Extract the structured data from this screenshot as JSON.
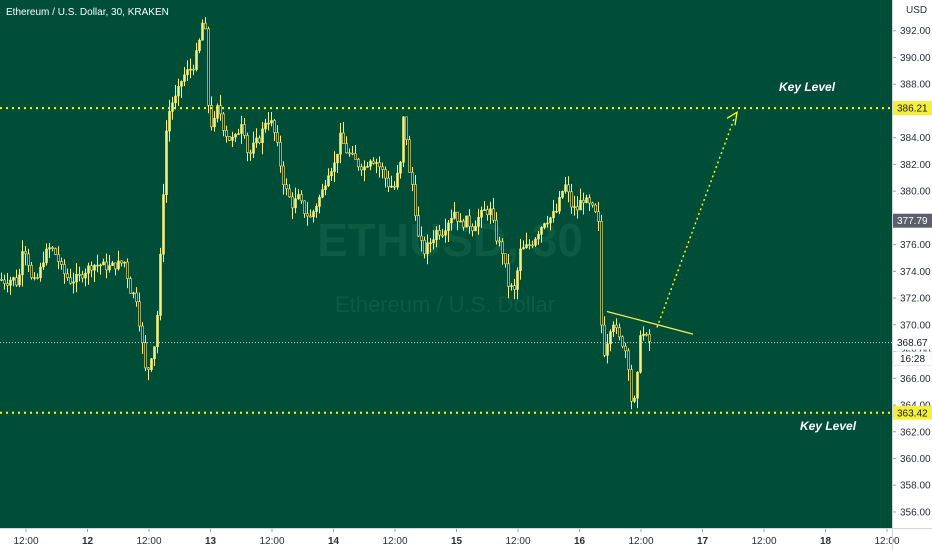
{
  "header": {
    "title": "Ethereum / U.S. Dollar, 30, KRAKEN",
    "currency": "USD"
  },
  "watermark": {
    "symbol": "ETHUSD, 30",
    "name": "Ethereum / U.S. Dollar"
  },
  "annotations": {
    "upper_label": "Key Level",
    "lower_label": "Key Level"
  },
  "colors": {
    "background": "#004d38",
    "candle": "#f5f07a",
    "line": "#f3ee5a",
    "dotted": "#ffff00",
    "axis_bg": "#ffffff"
  },
  "chart_data": {
    "type": "candlestick",
    "title": "Ethereum / U.S. Dollar, 30, KRAKEN",
    "ylabel": "USD",
    "ylim": [
      354.8,
      394.3
    ],
    "y_ticks": [
      "356.00",
      "358.00",
      "360.00",
      "362.00",
      "364.00",
      "366.00",
      "368.00",
      "370.00",
      "372.00",
      "374.00",
      "376.00",
      "378.00",
      "380.00",
      "382.00",
      "384.00",
      "386.00",
      "388.00",
      "390.00",
      "392.00"
    ],
    "x_ticks": [
      "12:00",
      "12",
      "12:00",
      "13",
      "12:00",
      "14",
      "12:00",
      "15",
      "12:00",
      "16",
      "12:00",
      "17",
      "12:00",
      "18",
      "12:00"
    ],
    "levels": {
      "upper_key_level": 386.21,
      "lower_key_level": 363.42,
      "last_price": 368.67,
      "price_tag": 377.79
    },
    "countdown": "16:28",
    "close_path": [
      [
        0,
        373.4
      ],
      [
        6,
        373.2
      ],
      [
        12,
        373.5
      ],
      [
        18,
        373.0
      ],
      [
        22,
        375.8
      ],
      [
        26,
        375.5
      ],
      [
        32,
        373.0
      ],
      [
        38,
        373.6
      ],
      [
        44,
        375.2
      ],
      [
        50,
        375.8
      ],
      [
        56,
        375.2
      ],
      [
        62,
        374.0
      ],
      [
        70,
        373.3
      ],
      [
        78,
        373.5
      ],
      [
        84,
        374.0
      ],
      [
        92,
        374.5
      ],
      [
        100,
        374.5
      ],
      [
        108,
        374.3
      ],
      [
        116,
        374.5
      ],
      [
        124,
        374.7
      ],
      [
        130,
        372.6
      ],
      [
        136,
        372.0
      ],
      [
        142,
        368.5
      ],
      [
        146,
        366.0
      ],
      [
        150,
        367.5
      ],
      [
        154,
        368.5
      ],
      [
        158,
        371.5
      ],
      [
        162,
        378.5
      ],
      [
        166,
        384.5
      ],
      [
        170,
        386.5
      ],
      [
        176,
        387.0
      ],
      [
        182,
        388.5
      ],
      [
        188,
        389.0
      ],
      [
        194,
        389.5
      ],
      [
        200,
        391.5
      ],
      [
        204,
        393.6
      ],
      [
        208,
        386.5
      ],
      [
        212,
        384.5
      ],
      [
        218,
        386.5
      ],
      [
        224,
        384.5
      ],
      [
        230,
        383.8
      ],
      [
        236,
        384.0
      ],
      [
        242,
        385.5
      ],
      [
        248,
        382.5
      ],
      [
        254,
        383.5
      ],
      [
        260,
        384.0
      ],
      [
        266,
        385.5
      ],
      [
        272,
        385.0
      ],
      [
        278,
        383.0
      ],
      [
        282,
        381.0
      ],
      [
        286,
        380.0
      ],
      [
        292,
        379.0
      ],
      [
        298,
        379.5
      ],
      [
        304,
        378.5
      ],
      [
        310,
        378.0
      ],
      [
        316,
        379.0
      ],
      [
        322,
        380.0
      ],
      [
        328,
        381.5
      ],
      [
        334,
        382.0
      ],
      [
        340,
        384.0
      ],
      [
        346,
        383.0
      ],
      [
        352,
        382.5
      ],
      [
        358,
        382.0
      ],
      [
        364,
        381.8
      ],
      [
        370,
        382.5
      ],
      [
        376,
        382.2
      ],
      [
        382,
        381.5
      ],
      [
        388,
        380.5
      ],
      [
        394,
        380.3
      ],
      [
        400,
        382.0
      ],
      [
        404,
        386.5
      ],
      [
        408,
        381.5
      ],
      [
        412,
        380.5
      ],
      [
        418,
        376.5
      ],
      [
        424,
        375.5
      ],
      [
        430,
        376.2
      ],
      [
        436,
        377.0
      ],
      [
        442,
        377.0
      ],
      [
        448,
        377.8
      ],
      [
        454,
        378.5
      ],
      [
        460,
        377.5
      ],
      [
        466,
        377.8
      ],
      [
        472,
        377.3
      ],
      [
        478,
        378.0
      ],
      [
        484,
        378.5
      ],
      [
        490,
        378.5
      ],
      [
        496,
        376.5
      ],
      [
        502,
        375.5
      ],
      [
        508,
        373.0
      ],
      [
        514,
        372.5
      ],
      [
        520,
        375.5
      ],
      [
        526,
        375.8
      ],
      [
        532,
        376.2
      ],
      [
        538,
        377.0
      ],
      [
        544,
        377.8
      ],
      [
        550,
        378.0
      ],
      [
        556,
        378.5
      ],
      [
        562,
        380.0
      ],
      [
        566,
        380.5
      ],
      [
        570,
        379.0
      ],
      [
        576,
        378.5
      ],
      [
        582,
        379.5
      ],
      [
        588,
        379.0
      ],
      [
        594,
        378.5
      ],
      [
        598,
        377.5
      ],
      [
        602,
        367.5
      ],
      [
        606,
        368.5
      ],
      [
        612,
        370.5
      ],
      [
        618,
        369.0
      ],
      [
        624,
        368.5
      ],
      [
        628,
        367.0
      ],
      [
        632,
        363.5
      ],
      [
        636,
        365.0
      ],
      [
        640,
        369.5
      ],
      [
        646,
        369.0
      ],
      [
        650,
        368.67
      ]
    ]
  }
}
